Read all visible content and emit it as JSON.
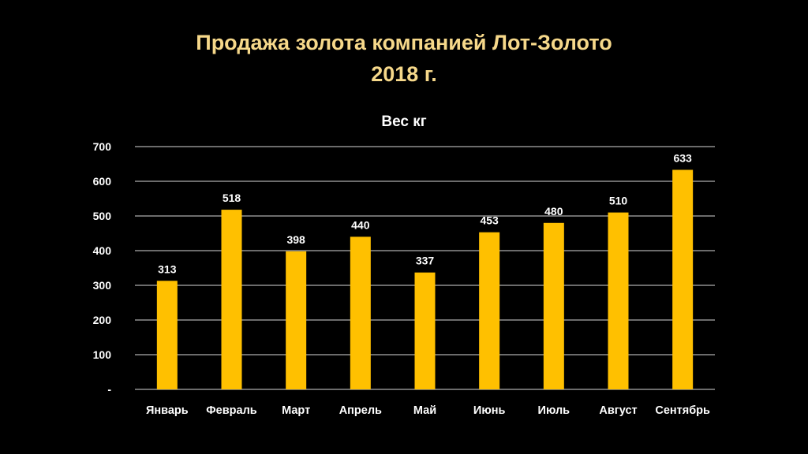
{
  "slide": {
    "title_line1": "Продажа золота компанией Лот-Золото",
    "title_line2": "2018 г.",
    "title_color": "#F6D88A"
  },
  "colors": {
    "background": "#000000",
    "bar": "#FFC000",
    "text": "#FFFFFF",
    "grid": "#D9D9D9"
  },
  "chart_data": {
    "type": "bar",
    "title": "Вес кг",
    "xlabel": "",
    "ylabel": "",
    "categories": [
      "Январь",
      "Февраль",
      "Март",
      "Апрель",
      "Май",
      "Июнь",
      "Июль",
      "Август",
      "Сентябрь"
    ],
    "values": [
      313,
      518,
      398,
      440,
      337,
      453,
      480,
      510,
      633
    ],
    "ylim": [
      0,
      700
    ],
    "yticks": [
      0,
      100,
      200,
      300,
      400,
      500,
      600,
      700
    ],
    "ytick_labels": [
      "-",
      "100",
      "200",
      "300",
      "400",
      "500",
      "600",
      "700"
    ],
    "grid": true,
    "legend": "none",
    "data_labels": true
  }
}
